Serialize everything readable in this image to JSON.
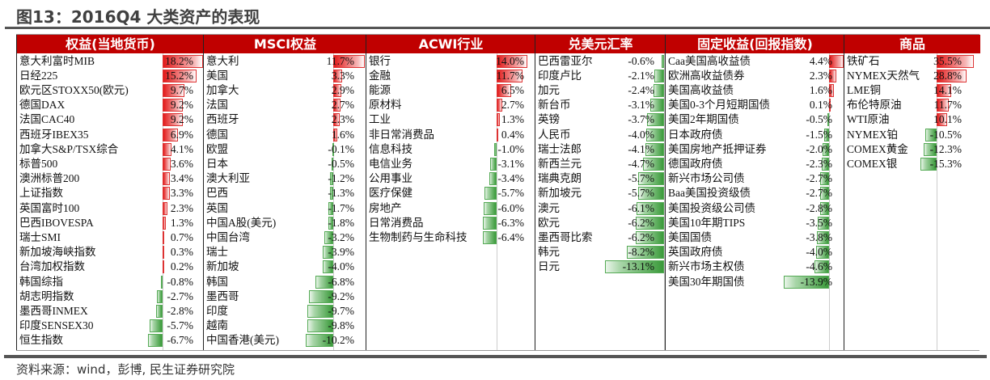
{
  "title": "图13：2016Q4 大类资产的表现",
  "source": "资料来源：wind，彭博, 民生证券研究院",
  "colors": {
    "header": "#c00000",
    "positive": "#e21a1a",
    "negative": "#3a9a3a"
  },
  "columns": [
    {
      "header": "权益(当地货币)",
      "rows": [
        [
          "意大利富时MIB",
          "18.2%",
          18.2
        ],
        [
          "日经225",
          "15.2%",
          15.2
        ],
        [
          "欧元区STOXX50(欧元)",
          "9.7%",
          9.7
        ],
        [
          "德国DAX",
          "9.2%",
          9.2
        ],
        [
          "法国CAC40",
          "9.2%",
          9.2
        ],
        [
          "西班牙IBEX35",
          "6.9%",
          6.9
        ],
        [
          "加拿大S&P/TSX综合",
          "4.1%",
          4.1
        ],
        [
          "标普500",
          "3.6%",
          3.6
        ],
        [
          "澳洲标普200",
          "3.4%",
          3.4
        ],
        [
          "上证指数",
          "3.3%",
          3.3
        ],
        [
          "英国富时100",
          "2.3%",
          2.3
        ],
        [
          "巴西IBOVESPA",
          "1.3%",
          1.3
        ],
        [
          "瑞士SMI",
          "0.7%",
          0.7
        ],
        [
          "新加坡海峡指数",
          "0.3%",
          0.3
        ],
        [
          "台湾加权指数",
          "0.2%",
          0.2
        ],
        [
          "韩国综指",
          "-0.8%",
          -0.8
        ],
        [
          "胡志明指数",
          "-2.7%",
          -2.7
        ],
        [
          "墨西哥INMEX",
          "-2.8%",
          -2.8
        ],
        [
          "印度SENSEX30",
          "-5.7%",
          -5.7
        ],
        [
          "恒生指数",
          "-6.7%",
          -6.7
        ]
      ]
    },
    {
      "header": "MSCI权益",
      "rows": [
        [
          "意大利",
          "11.7%",
          11.7
        ],
        [
          "美国",
          "3.3%",
          3.3
        ],
        [
          "加拿大",
          "2.9%",
          2.9
        ],
        [
          "法国",
          "2.7%",
          2.7
        ],
        [
          "西班牙",
          "2.3%",
          2.3
        ],
        [
          "德国",
          "1.6%",
          1.6
        ],
        [
          "欧盟",
          "-0.1%",
          -0.1
        ],
        [
          "日本",
          "-0.5%",
          -0.5
        ],
        [
          "澳大利亚",
          "-1.2%",
          -1.2
        ],
        [
          "巴西",
          "-1.3%",
          -1.3
        ],
        [
          "英国",
          "-1.7%",
          -1.7
        ],
        [
          "中国A股(美元)",
          "-1.8%",
          -1.8
        ],
        [
          "中国台湾",
          "-3.2%",
          -3.2
        ],
        [
          "瑞士",
          "-3.9%",
          -3.9
        ],
        [
          "新加坡",
          "-4.0%",
          -4.0
        ],
        [
          "韩国",
          "-6.8%",
          -6.8
        ],
        [
          "墨西哥",
          "-9.2%",
          -9.2
        ],
        [
          "印度",
          "-9.7%",
          -9.7
        ],
        [
          "越南",
          "-9.8%",
          -9.8
        ],
        [
          "中国香港(美元)",
          "-10.2%",
          -10.2
        ]
      ]
    },
    {
      "header": "ACWI行业",
      "rows": [
        [
          "银行",
          "14.0%",
          14.0
        ],
        [
          "金融",
          "11.7%",
          11.7
        ],
        [
          "能源",
          "6.5%",
          6.5
        ],
        [
          "原材料",
          "2.7%",
          2.7
        ],
        [
          "工业",
          "1.3%",
          1.3
        ],
        [
          "非日常消费品",
          "0.4%",
          0.4
        ],
        [
          "信息科技",
          "-1.0%",
          -1.0
        ],
        [
          "电信业务",
          "-3.1%",
          -3.1
        ],
        [
          "公用事业",
          "-3.4%",
          -3.4
        ],
        [
          "医疗保健",
          "-5.7%",
          -5.7
        ],
        [
          "房地产",
          "-6.0%",
          -6.0
        ],
        [
          "日常消费品",
          "-6.3%",
          -6.3
        ],
        [
          "生物制药与生命科技",
          "-6.4%",
          -6.4
        ]
      ]
    },
    {
      "header": "兑美元汇率",
      "rows": [
        [
          "巴西雷亚尔",
          "-0.6%",
          -0.6
        ],
        [
          "印度卢比",
          "-2.1%",
          -2.1
        ],
        [
          "加元",
          "-2.4%",
          -2.4
        ],
        [
          "新台币",
          "-3.1%",
          -3.1
        ],
        [
          "英镑",
          "-3.7%",
          -3.7
        ],
        [
          "人民币",
          "-4.0%",
          -4.0
        ],
        [
          "瑞士法郎",
          "-4.1%",
          -4.1
        ],
        [
          "新西兰元",
          "-4.7%",
          -4.7
        ],
        [
          "瑞典克朗",
          "-5.7%",
          -5.7
        ],
        [
          "新加坡元",
          "-5.7%",
          -5.7
        ],
        [
          "澳元",
          "-6.1%",
          -6.1
        ],
        [
          "欧元",
          "-6.2%",
          -6.2
        ],
        [
          "墨西哥比索",
          "-6.2%",
          -6.2
        ],
        [
          "韩元",
          "-8.2%",
          -8.2
        ],
        [
          "日元",
          "-13.1%",
          -13.1
        ]
      ]
    },
    {
      "header": "固定收益(回报指数)",
      "rows": [
        [
          "Caa美国高收益债",
          "4.4%",
          4.4
        ],
        [
          "欧洲高收益债券",
          "2.3%",
          2.3
        ],
        [
          "美国高收益债",
          "1.6%",
          1.6
        ],
        [
          "美国0-3个月短期国债",
          "0.1%",
          0.1
        ],
        [
          "美国2年期国债",
          "-0.5%",
          -0.5
        ],
        [
          "日本政府债",
          "-1.5%",
          -1.5
        ],
        [
          "美国房地产抵押证券",
          "-2.0%",
          -2.0
        ],
        [
          "德国政府债",
          "-2.3%",
          -2.3
        ],
        [
          "新兴市场公司债",
          "-2.7%",
          -2.7
        ],
        [
          "Baa美国投资级债",
          "-2.7%",
          -2.7
        ],
        [
          "美国投资级公司债",
          "-2.8%",
          -2.8
        ],
        [
          "美国10年期TIPS",
          "-3.5%",
          -3.5
        ],
        [
          "美国国债",
          "-3.8%",
          -3.8
        ],
        [
          "英国政府债",
          "-4.0%",
          -4.0
        ],
        [
          "新兴市场主权债",
          "-4.6%",
          -4.6
        ],
        [
          "美国30年期国债",
          "-13.9%",
          -13.9
        ]
      ]
    },
    {
      "header": "商品",
      "rows": [
        [
          "铁矿石",
          "35.5%",
          35.5
        ],
        [
          "NYMEX天然气",
          "28.8%",
          28.8
        ],
        [
          "LME铜",
          "14.1%",
          14.1
        ],
        [
          "布伦特原油",
          "11.7%",
          11.7
        ],
        [
          "WTI原油",
          "10.1%",
          10.1
        ],
        [
          "NYMEX铂",
          "-10.5%",
          -10.5
        ],
        [
          "COMEX黄金",
          "-12.3%",
          -12.3
        ],
        [
          "COMEX银",
          "-15.3%",
          -15.3
        ]
      ]
    }
  ]
}
